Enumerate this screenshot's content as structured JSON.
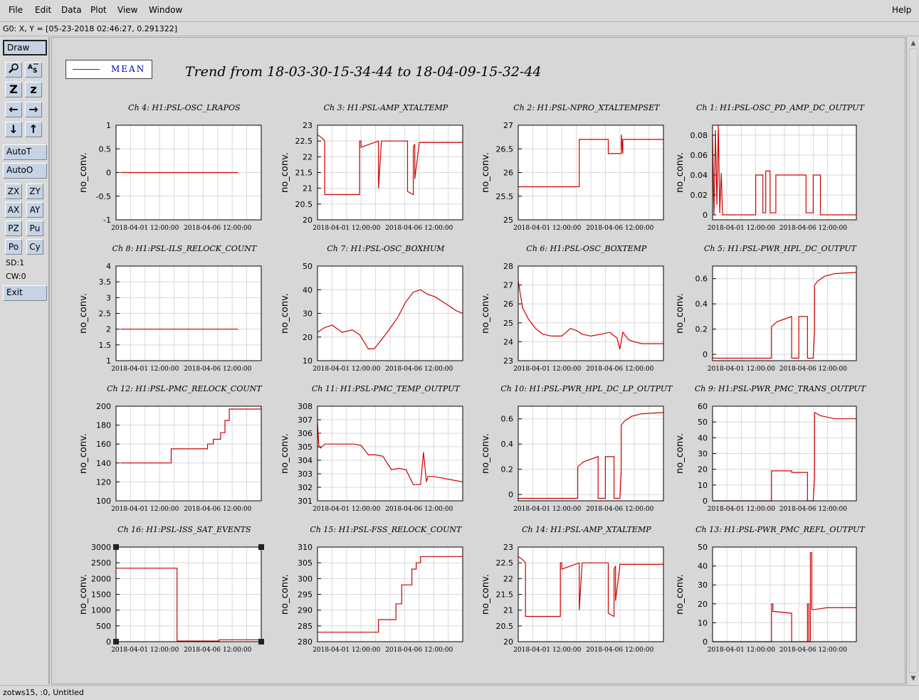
{
  "menu": {
    "file": "File",
    "edit": "Edit",
    "data": "Data",
    "plot": "Plot",
    "view": "View",
    "window": "Window",
    "help": "Help"
  },
  "coord_readout": "G0: X, Y = [05-23-2018 02:46:27, 0.291322]",
  "toolbar": {
    "draw": "Draw",
    "zoom_icon": "magnifier-icon",
    "autoscale_text_icon": "autoscale-text-icon",
    "zoom_in": "Z",
    "zoom_out": "z",
    "left": "←",
    "right": "→",
    "down": "↓",
    "up": "↑",
    "autot": "AutoT",
    "autoo": "AutoO",
    "zx": "ZX",
    "zy": "ZY",
    "ax": "AX",
    "ay": "AY",
    "pz": "PZ",
    "pu": "Pu",
    "po": "Po",
    "cy": "Cy",
    "sd": "SD:1",
    "cw": "CW:0",
    "exit": "Exit"
  },
  "status": "zotws15, :0, Untitled",
  "legend": {
    "label": "MEAN",
    "color": "#cc0000"
  },
  "title": "Trend from 18-03-30-15-34-44 to 18-04-09-15-32-44",
  "chart_data": [
    {
      "type": "line",
      "title": "Ch 4: H1:PSL-OSC_LRAPOS",
      "ylabel": "no_conv.",
      "xticks": [
        "2018-04-01 12:00:00",
        "2018-04-06 12:00:00"
      ],
      "xlim": [
        0,
        10
      ],
      "ylim": [
        -1,
        1
      ],
      "yticks": [
        "1",
        "0.5",
        "0",
        "-0.5",
        "-1"
      ],
      "yvals": [
        1,
        0.5,
        0,
        -0.5,
        -1
      ],
      "series": [
        {
          "x": [
            0.3,
            8.4
          ],
          "y": [
            0,
            0
          ]
        }
      ]
    },
    {
      "type": "line",
      "title": "Ch 8: H1:PSL-ILS_RELOCK_COUNT",
      "ylabel": "no_conv.",
      "xticks": [
        "2018-04-01 12:00:00",
        "2018-04-06 12:00:00"
      ],
      "xlim": [
        0,
        10
      ],
      "ylim": [
        1,
        4
      ],
      "yticks": [
        "4",
        "3.5",
        "3",
        "2.5",
        "2",
        "1.5",
        "1"
      ],
      "yvals": [
        4,
        3.5,
        3,
        2.5,
        2,
        1.5,
        1
      ],
      "series": [
        {
          "x": [
            0.3,
            8.4
          ],
          "y": [
            2,
            2
          ]
        }
      ]
    },
    {
      "type": "line",
      "title": "Ch 12: H1:PSL-PMC_RELOCK_COUNT",
      "ylabel": "no_conv.",
      "xticks": [
        "2018-04-01 12:00:00",
        "2018-04-06 12:00:00"
      ],
      "xlim": [
        0,
        10
      ],
      "ylim": [
        100,
        200
      ],
      "yticks": [
        "200",
        "180",
        "160",
        "140",
        "120",
        "100"
      ],
      "yvals": [
        200,
        180,
        160,
        140,
        120,
        100
      ],
      "series": [
        {
          "x": [
            0.3,
            3.8,
            3.8,
            6.3,
            6.3,
            6.7,
            6.7,
            7.2,
            7.2,
            7.5,
            7.5,
            7.8,
            7.8,
            10
          ],
          "y": [
            140,
            140,
            155,
            155,
            160,
            160,
            165,
            165,
            172,
            172,
            185,
            185,
            197,
            197
          ]
        }
      ]
    },
    {
      "type": "line",
      "title": "Ch 16: H1:PSL-ISS_SAT_EVENTS",
      "ylabel": "no_conv.",
      "xticks": [
        "2018-04-01 12:00:00",
        "2018-04-06 12:00:00"
      ],
      "xlim": [
        0,
        10
      ],
      "ylim": [
        0,
        3000
      ],
      "yticks": [
        "3000",
        "2500",
        "2000",
        "1500",
        "1000",
        "500",
        "0"
      ],
      "yvals": [
        3000,
        2500,
        2000,
        1500,
        1000,
        500,
        0
      ],
      "series": [
        {
          "x": [
            0,
            4.2,
            4.2,
            7.1,
            7.1,
            10
          ],
          "y": [
            2330,
            2330,
            20,
            20,
            60,
            60
          ]
        }
      ]
    },
    {
      "type": "line",
      "title": "Ch 3: H1:PSL-AMP_XTALTEMP",
      "ylabel": "no_conv.",
      "xticks": [
        "2018-04-01 12:00:00",
        "2018-04-06 12:00:00"
      ],
      "xlim": [
        0,
        10
      ],
      "ylim": [
        20,
        23
      ],
      "yticks": [
        "23",
        "22.5",
        "22",
        "21.5",
        "21",
        "20.5",
        "20"
      ],
      "yvals": [
        23,
        22.5,
        22,
        21.5,
        21,
        20.5,
        20
      ],
      "series": [
        {
          "x": [
            0,
            0.3,
            0.5,
            0.5,
            2.9,
            2.9,
            3.0,
            3.0,
            4.2,
            4.2,
            4.4,
            4.4,
            6.2,
            6.2,
            6.6,
            6.6,
            6.7,
            6.7,
            7.0,
            7.0,
            10
          ],
          "y": [
            22.7,
            22.6,
            22.5,
            20.8,
            20.8,
            22.5,
            22.5,
            22.3,
            22.5,
            21.0,
            22.5,
            22.5,
            22.5,
            20.9,
            20.8,
            22.3,
            22.4,
            21.3,
            22.4,
            22.45,
            22.45
          ]
        }
      ]
    },
    {
      "type": "line",
      "title": "Ch 7: H1:PSL-OSC_BOXHUM",
      "ylabel": "no_conv.",
      "xticks": [
        "2018-04-01 12:00:00",
        "2018-04-06 12:00:00"
      ],
      "xlim": [
        0,
        10
      ],
      "ylim": [
        10,
        50
      ],
      "yticks": [
        "50",
        "40",
        "30",
        "20",
        "10"
      ],
      "yvals": [
        50,
        40,
        30,
        20,
        10
      ],
      "series": [
        {
          "x": [
            0,
            0.5,
            1.0,
            1.7,
            2.4,
            2.9,
            3.3,
            3.5,
            3.9,
            4.3,
            4.8,
            5.5,
            6.1,
            6.6,
            7.1,
            7.6,
            8.1,
            8.6,
            9.1,
            9.6,
            10
          ],
          "y": [
            22,
            24,
            25,
            22,
            23,
            21,
            17,
            15,
            15,
            18,
            22,
            28,
            35,
            39,
            40,
            38,
            37,
            35,
            33,
            31,
            30
          ]
        }
      ]
    },
    {
      "type": "line",
      "title": "Ch 11: H1:PSL-PMC_TEMP_OUTPUT",
      "ylabel": "no_conv.",
      "xticks": [
        "2018-04-01 12:00:00",
        "2018-04-06 12:00:00"
      ],
      "xlim": [
        0,
        10
      ],
      "ylim": [
        301,
        308
      ],
      "yticks": [
        "308",
        "307",
        "306",
        "305",
        "304",
        "303",
        "302",
        "301"
      ],
      "yvals": [
        308,
        307,
        306,
        305,
        304,
        303,
        302,
        301
      ],
      "series": [
        {
          "x": [
            0,
            0.1,
            0.2,
            0.5,
            1.0,
            2.5,
            3.0,
            3.5,
            4.0,
            4.5,
            5.1,
            5.6,
            6.1,
            6.6,
            7.1,
            7.3,
            7.5,
            7.6,
            7.8,
            8.0,
            8.5,
            9.0,
            10
          ],
          "y": [
            306.8,
            305,
            304.9,
            305.2,
            305.2,
            305.2,
            305.1,
            304.4,
            304.4,
            304.3,
            303.3,
            303.4,
            303.3,
            302.2,
            302.2,
            304.6,
            302.4,
            302.8,
            302.8,
            302.8,
            302.7,
            302.6,
            302.4
          ]
        }
      ]
    },
    {
      "type": "line",
      "title": "Ch 15: H1:PSL-FSS_RELOCK_COUNT",
      "ylabel": "no_conv.",
      "xticks": [
        "2018-04-01 12:00:00",
        "2018-04-06 12:00:00"
      ],
      "xlim": [
        0,
        10
      ],
      "ylim": [
        280,
        310
      ],
      "yticks": [
        "310",
        "305",
        "300",
        "295",
        "290",
        "285",
        "280"
      ],
      "yvals": [
        310,
        305,
        300,
        295,
        290,
        285,
        280
      ],
      "series": [
        {
          "x": [
            0,
            4.2,
            4.2,
            5.4,
            5.4,
            5.8,
            5.8,
            6.5,
            6.5,
            6.8,
            6.8,
            7.1,
            7.1,
            10
          ],
          "y": [
            283,
            283,
            287,
            287,
            292,
            292,
            298,
            298,
            303,
            303,
            305,
            305,
            307,
            307
          ]
        }
      ]
    },
    {
      "type": "line",
      "title": "Ch 2: H1:PSL-NPRO_XTALTEMPSET",
      "ylabel": "no_conv.",
      "xticks": [
        "2018-04-01 12:00:00",
        "2018-04-06 12:00:00"
      ],
      "xlim": [
        0,
        10
      ],
      "ylim": [
        25,
        27
      ],
      "yticks": [
        "27",
        "26.5",
        "26",
        "25.5",
        "25"
      ],
      "yvals": [
        27,
        26.5,
        26,
        25.5,
        25
      ],
      "series": [
        {
          "x": [
            0,
            4.2,
            4.2,
            6.2,
            6.2,
            7.1,
            7.1,
            7.2,
            7.2,
            10
          ],
          "y": [
            25.7,
            25.7,
            26.7,
            26.7,
            26.4,
            26.4,
            26.8,
            26.4,
            26.7,
            26.7
          ]
        }
      ]
    },
    {
      "type": "line",
      "title": "Ch 6: H1:PSL-OSC_BOXTEMP",
      "ylabel": "no_conv.",
      "xticks": [
        "2018-04-01 12:00:00",
        "2018-04-06 12:00:00"
      ],
      "xlim": [
        0,
        10
      ],
      "ylim": [
        23,
        28
      ],
      "yticks": [
        "28",
        "27",
        "26",
        "25",
        "24",
        "23"
      ],
      "yvals": [
        28,
        27,
        26,
        25,
        24,
        23
      ],
      "series": [
        {
          "x": [
            0,
            0.3,
            0.7,
            1.2,
            1.7,
            2.3,
            3.0,
            3.6,
            4.0,
            4.4,
            5.0,
            5.7,
            6.3,
            6.8,
            7.0,
            7.2,
            7.6,
            8.0,
            8.5,
            10
          ],
          "y": [
            27.2,
            25.8,
            25.2,
            24.7,
            24.4,
            24.3,
            24.3,
            24.7,
            24.6,
            24.4,
            24.3,
            24.4,
            24.5,
            24.2,
            23.6,
            24.5,
            24.1,
            24.0,
            23.9,
            23.9
          ]
        }
      ]
    },
    {
      "type": "line",
      "title": "Ch 10: H1:PSL-PWR_HPL_DC_LP_OUTPUT",
      "ylabel": "no_conv.",
      "xticks": [
        "2018-04-01 12:00:00",
        "2018-04-06 12:00:00"
      ],
      "xlim": [
        0,
        10
      ],
      "ylim": [
        -0.05,
        0.7
      ],
      "yticks": [
        "0.6",
        "0.4",
        "0.2",
        "0"
      ],
      "yvals": [
        0.6,
        0.4,
        0.2,
        0
      ],
      "series": [
        {
          "x": [
            0,
            4.1,
            4.1,
            4.5,
            5.0,
            5.5,
            5.5,
            6.0,
            6.0,
            6.6,
            6.6,
            7.0,
            7.1,
            7.1,
            7.3,
            7.8,
            8.5,
            10
          ],
          "y": [
            -0.03,
            -0.03,
            0.22,
            0.26,
            0.28,
            0.3,
            -0.03,
            -0.03,
            0.3,
            0.3,
            -0.03,
            -0.03,
            0.2,
            0.55,
            0.58,
            0.62,
            0.64,
            0.65
          ]
        }
      ]
    },
    {
      "type": "line",
      "title": "Ch 14: H1:PSL-AMP_XTALTEMP",
      "ylabel": "no_conv.",
      "xticks": [
        "2018-04-01 12:00:00",
        "2018-04-06 12:00:00"
      ],
      "xlim": [
        0,
        10
      ],
      "ylim": [
        20,
        23
      ],
      "yticks": [
        "23",
        "22.5",
        "22",
        "21.5",
        "21",
        "20.5",
        "20"
      ],
      "yvals": [
        23,
        22.5,
        22,
        21.5,
        21,
        20.5,
        20
      ],
      "series": [
        {
          "x": [
            0,
            0.3,
            0.5,
            0.5,
            2.9,
            2.9,
            3.0,
            3.0,
            4.2,
            4.2,
            4.4,
            4.4,
            6.2,
            6.2,
            6.6,
            6.6,
            6.7,
            6.7,
            7.0,
            7.0,
            10
          ],
          "y": [
            22.7,
            22.6,
            22.5,
            20.8,
            20.8,
            22.5,
            22.5,
            22.3,
            22.5,
            21.0,
            22.5,
            22.5,
            22.5,
            20.9,
            20.8,
            22.3,
            22.4,
            21.3,
            22.4,
            22.45,
            22.45
          ]
        }
      ]
    },
    {
      "type": "line",
      "title": "Ch 1: H1:PSL-OSC_PD_AMP_DC_OUTPUT",
      "ylabel": "no_conv.",
      "xticks": [
        "2018-04-01 12:00:00",
        "2018-04-06 12:00:00"
      ],
      "xlim": [
        0,
        10
      ],
      "ylim": [
        -0.005,
        0.09
      ],
      "yticks": [
        "0.08",
        "0.06",
        "0.04",
        "0.02",
        "0"
      ],
      "yvals": [
        0.08,
        0.06,
        0.04,
        0.02,
        0
      ],
      "series": [
        {
          "x": [
            0,
            0.1,
            0.2,
            0.3,
            0.4,
            0.5,
            0.6,
            0.7,
            1.5,
            3.0,
            3.0,
            3.5,
            3.5,
            3.7,
            3.7,
            4.0,
            4.0,
            4.4,
            4.4,
            6.5,
            6.5,
            7.0,
            7.0,
            7.5,
            7.5,
            10
          ],
          "y": [
            0.08,
            0,
            0.085,
            0.01,
            0.09,
            0.002,
            0.042,
            0,
            0,
            0,
            0.04,
            0.04,
            0.002,
            0.002,
            0.044,
            0.044,
            0.002,
            0.002,
            0.04,
            0.04,
            0.002,
            0.002,
            0.04,
            0.04,
            0,
            0
          ]
        }
      ]
    },
    {
      "type": "line",
      "title": "Ch 5: H1:PSL-PWR_HPL_DC_OUTPUT",
      "ylabel": "no_conv.",
      "xticks": [
        "2018-04-01 12:00:00",
        "2018-04-06 12:00:00"
      ],
      "xlim": [
        0,
        10
      ],
      "ylim": [
        -0.05,
        0.7
      ],
      "yticks": [
        "0.6",
        "0.4",
        "0.2",
        "0"
      ],
      "yvals": [
        0.6,
        0.4,
        0.2,
        0
      ],
      "series": [
        {
          "x": [
            0,
            4.1,
            4.1,
            4.5,
            5.0,
            5.5,
            5.5,
            6.0,
            6.0,
            6.6,
            6.6,
            7.0,
            7.1,
            7.1,
            7.3,
            7.8,
            8.5,
            10
          ],
          "y": [
            -0.03,
            -0.03,
            0.22,
            0.26,
            0.28,
            0.3,
            -0.03,
            -0.03,
            0.3,
            0.3,
            -0.03,
            -0.03,
            0.2,
            0.55,
            0.58,
            0.62,
            0.64,
            0.65
          ]
        }
      ]
    },
    {
      "type": "line",
      "title": "Ch 9: H1:PSL-PWR_PMC_TRANS_OUTPUT",
      "ylabel": "no_conv.",
      "xticks": [
        "2018-04-01 12:00:00",
        "2018-04-06 12:00:00"
      ],
      "xlim": [
        0,
        10
      ],
      "ylim": [
        0,
        60
      ],
      "yticks": [
        "60",
        "50",
        "40",
        "30",
        "20",
        "10",
        "0"
      ],
      "yvals": [
        60,
        50,
        40,
        30,
        20,
        10,
        0
      ],
      "series": [
        {
          "x": [
            0,
            4.1,
            4.1,
            5.5,
            5.5,
            6.6,
            6.6,
            7.0,
            7.1,
            7.1,
            7.5,
            8.5,
            10
          ],
          "y": [
            0,
            0,
            19,
            19,
            18,
            18,
            0,
            0,
            15,
            56,
            54,
            52,
            52
          ]
        }
      ]
    },
    {
      "type": "line",
      "title": "Ch 13: H1:PSL-PWR_PMC_REFL_OUTPUT",
      "ylabel": "no_conv.",
      "xticks": [
        "2018-04-01 12:00:00",
        "2018-04-06 12:00:00"
      ],
      "xlim": [
        0,
        10
      ],
      "ylim": [
        0,
        50
      ],
      "yticks": [
        "50",
        "40",
        "30",
        "20",
        "10",
        "0"
      ],
      "yvals": [
        50,
        40,
        30,
        20,
        10,
        0
      ],
      "series": [
        {
          "x": [
            0,
            4.1,
            4.1,
            4.2,
            4.2,
            5.5,
            5.5,
            6.6,
            6.6,
            6.7,
            6.7,
            6.8,
            6.8,
            6.9,
            6.9,
            7.1,
            7.1,
            8.0,
            10
          ],
          "y": [
            0,
            0,
            20,
            20,
            16,
            15,
            0,
            0,
            20,
            20,
            0,
            0,
            47,
            47,
            17,
            17,
            17,
            18,
            18
          ]
        }
      ]
    }
  ]
}
